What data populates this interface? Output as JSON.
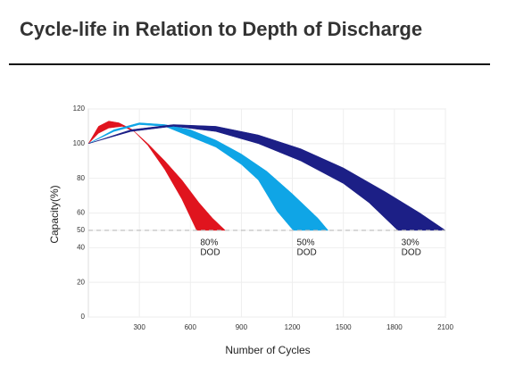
{
  "chart_data": {
    "type": "band",
    "title": "Cycle-life in Relation to Depth of Discharge",
    "x_label": "Number of Cycles",
    "y_label": "Capacity(%)",
    "xlim": [
      0,
      2100
    ],
    "xticks": [
      300,
      600,
      900,
      1200,
      1500,
      1800,
      2100
    ],
    "ylim": [
      0,
      120
    ],
    "yticks": [
      0,
      20,
      40,
      50,
      60,
      80,
      100,
      120
    ],
    "grid": true,
    "reference_line": 50,
    "series": [
      {
        "color": "#e0141e",
        "label": [
          "80%",
          "DOD"
        ],
        "outer": {
          "x": [
            0,
            60,
            120,
            180,
            260,
            350,
            450,
            550,
            650,
            730,
            805
          ],
          "values": [
            100,
            110,
            113,
            112,
            108,
            100,
            90,
            79,
            66,
            57,
            50
          ]
        },
        "inner": {
          "x": [
            0,
            60,
            120,
            200,
            270,
            350,
            450,
            550,
            637
          ],
          "values": [
            100,
            106,
            109,
            110,
            107,
            99,
            85,
            68,
            50
          ]
        }
      },
      {
        "color": "#0fa5e6",
        "label": [
          "50%",
          "DOD"
        ],
        "outer": {
          "x": [
            0,
            150,
            300,
            450,
            600,
            750,
            900,
            1050,
            1200,
            1350,
            1410
          ],
          "values": [
            100,
            108,
            112,
            111,
            108,
            102,
            94,
            84,
            71,
            57,
            50
          ]
        },
        "inner": {
          "x": [
            0,
            150,
            300,
            450,
            600,
            750,
            900,
            1000,
            1110,
            1205
          ],
          "values": [
            100,
            107,
            111,
            110,
            104,
            98,
            88,
            79,
            61,
            50
          ]
        }
      },
      {
        "color": "#1c1f86",
        "label": [
          "30%",
          "DOD"
        ],
        "outer": {
          "x": [
            0,
            250,
            500,
            750,
            1000,
            1250,
            1500,
            1750,
            1950,
            2100
          ],
          "values": [
            100,
            108,
            111,
            110,
            105,
            97,
            86,
            72,
            60,
            50
          ]
        },
        "inner": {
          "x": [
            0,
            250,
            500,
            750,
            1000,
            1250,
            1500,
            1650,
            1820
          ],
          "values": [
            100,
            107,
            110,
            107,
            100,
            90,
            77,
            66,
            50
          ]
        }
      }
    ]
  }
}
